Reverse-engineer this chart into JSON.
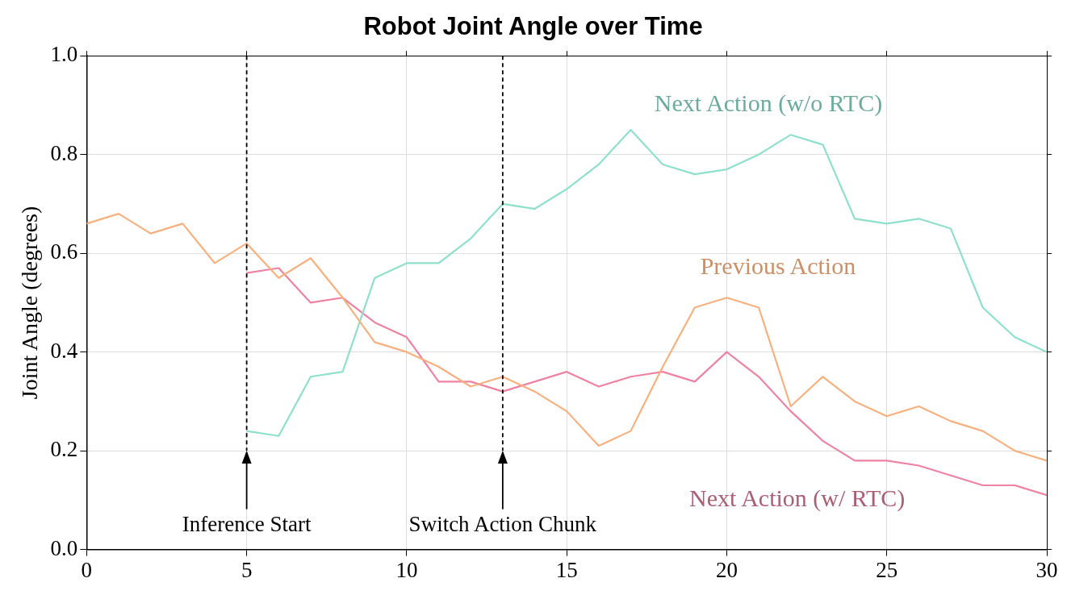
{
  "chart_data": {
    "type": "line",
    "title": "Robot Joint Angle over Time",
    "ylabel": "Joint Angle (degrees)",
    "xlim": [
      0,
      30
    ],
    "xticks": [
      0,
      5,
      10,
      15,
      20,
      25,
      30
    ],
    "ylim": [
      0,
      1
    ],
    "yticks": [
      {
        "value": 0,
        "label": "0.0"
      },
      0.2,
      0.4,
      0.6,
      0.8,
      {
        "value": 1,
        "label": "1.0"
      }
    ],
    "grid": true,
    "legend": false,
    "marker": "none",
    "line_style": "solid",
    "series": [
      {
        "name": "Previous Action",
        "color": "#f8b07e",
        "x": [
          0,
          1,
          2,
          3,
          4,
          5,
          6,
          7,
          8,
          9,
          10,
          11,
          12,
          13,
          14,
          15,
          16,
          17,
          18,
          19,
          20,
          21,
          22,
          23,
          24,
          25,
          26,
          27,
          28,
          29,
          30
        ],
        "values": [
          0.66,
          0.68,
          0.64,
          0.66,
          0.58,
          0.62,
          0.55,
          0.59,
          0.51,
          0.42,
          0.4,
          0.37,
          0.33,
          0.35,
          0.32,
          0.28,
          0.21,
          0.24,
          0.37,
          0.49,
          0.51,
          0.49,
          0.29,
          0.35,
          0.3,
          0.27,
          0.29,
          0.26,
          0.24,
          0.2,
          0.18
        ]
      },
      {
        "name": "Next Action (w/o RTC)",
        "color": "#8ee0cc",
        "x": [
          5,
          6,
          7,
          8,
          9,
          10,
          11,
          12,
          13,
          14,
          15,
          16,
          17,
          18,
          19,
          20,
          21,
          22,
          23,
          24,
          25,
          26,
          27,
          28,
          29,
          30
        ],
        "values": [
          0.24,
          0.23,
          0.35,
          0.36,
          0.55,
          0.58,
          0.58,
          0.63,
          0.7,
          0.69,
          0.73,
          0.78,
          0.85,
          0.78,
          0.76,
          0.77,
          0.8,
          0.84,
          0.82,
          0.67,
          0.66,
          0.67,
          0.65,
          0.49,
          0.43,
          0.4
        ]
      },
      {
        "name": "Next Action (w/ RTC)",
        "color": "#ef82a2",
        "x": [
          5,
          6,
          7,
          8,
          9,
          10,
          11,
          12,
          13,
          14,
          15,
          16,
          17,
          18,
          19,
          20,
          21,
          22,
          23,
          24,
          25,
          26,
          27,
          28,
          29,
          30
        ],
        "values": [
          0.56,
          0.57,
          0.5,
          0.51,
          0.46,
          0.43,
          0.34,
          0.34,
          0.32,
          0.34,
          0.36,
          0.33,
          0.35,
          0.36,
          0.34,
          0.4,
          0.35,
          0.28,
          0.22,
          0.18,
          0.18,
          0.17,
          0.15,
          0.13,
          0.13,
          0.11
        ]
      }
    ],
    "ref_lines": [
      {
        "axis": "x",
        "value": 5,
        "label": "Inference Start",
        "color": "#000000",
        "line_style": "dashed"
      },
      {
        "axis": "x",
        "value": 13,
        "label": "Switch Action Chunk",
        "color": "#000000",
        "line_style": "dashed"
      }
    ]
  }
}
